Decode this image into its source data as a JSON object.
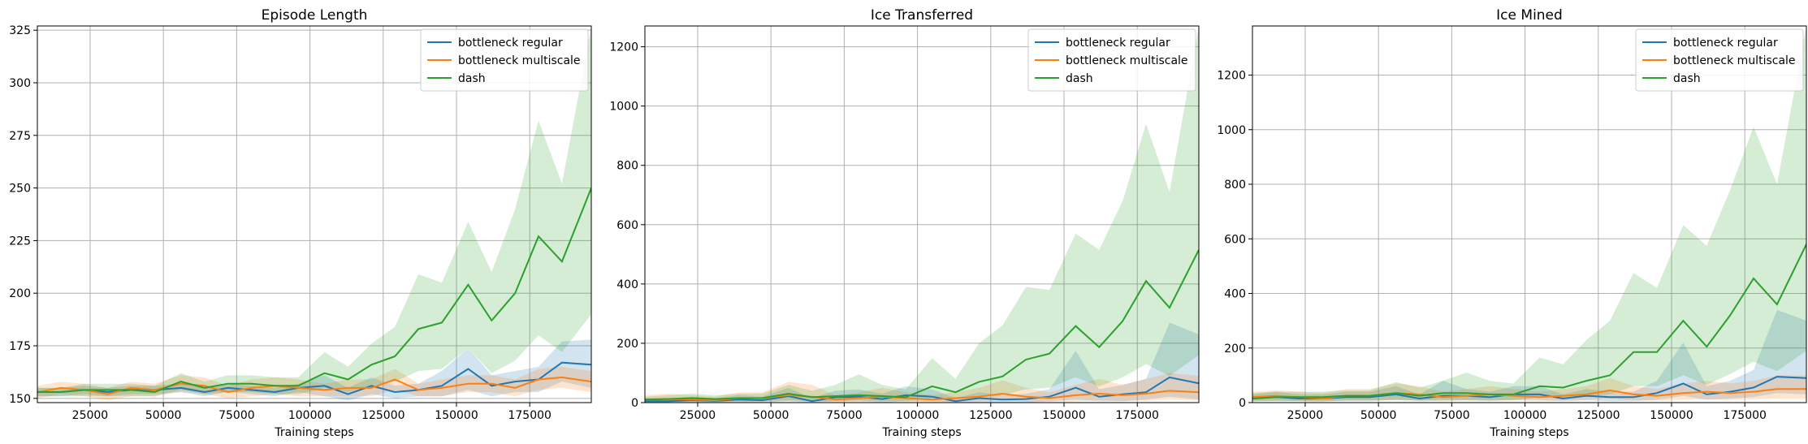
{
  "chart_data": [
    {
      "type": "line",
      "title": "Episode Length",
      "xlabel": "Training steps",
      "ylabel": "",
      "xlim": [
        7000,
        196000
      ],
      "ylim": [
        148,
        327
      ],
      "xticks": [
        25000,
        50000,
        75000,
        100000,
        125000,
        150000,
        175000
      ],
      "yticks": [
        150,
        175,
        200,
        225,
        250,
        275,
        300,
        325
      ],
      "grid": true,
      "legend": "top-right",
      "x": [
        7000,
        15000,
        23000,
        31000,
        39000,
        47000,
        56000,
        64000,
        72000,
        80000,
        88000,
        96000,
        105000,
        113000,
        121000,
        129000,
        137000,
        145000,
        154000,
        162000,
        170000,
        178000,
        186000,
        196000
      ],
      "series": [
        {
          "name": "bottleneck regular",
          "color": "#1f77b4",
          "values": [
            153,
            153,
            154,
            153,
            154,
            154,
            155,
            153,
            155,
            154,
            153,
            155,
            156,
            152,
            156,
            153,
            154,
            156,
            164,
            156,
            158,
            159,
            167,
            166
          ],
          "lower": [
            151,
            151,
            152,
            151,
            152,
            152,
            153,
            151,
            153,
            152,
            151,
            153,
            151,
            149,
            152,
            150,
            151,
            151,
            154,
            151,
            153,
            153,
            158,
            155
          ],
          "upper": [
            155,
            155,
            156,
            155,
            156,
            156,
            157,
            155,
            157,
            156,
            155,
            157,
            161,
            155,
            160,
            156,
            157,
            163,
            174,
            161,
            163,
            165,
            177,
            178
          ]
        },
        {
          "name": "bottleneck multiscale",
          "color": "#ff7f0e",
          "values": [
            153,
            155,
            154,
            152,
            155,
            154,
            157,
            156,
            153,
            155,
            156,
            155,
            154,
            155,
            155,
            159,
            154,
            155,
            157,
            157,
            155,
            159,
            160,
            158
          ],
          "lower": [
            150,
            152,
            151,
            149,
            151,
            151,
            153,
            152,
            150,
            151,
            152,
            151,
            151,
            151,
            151,
            154,
            151,
            151,
            153,
            153,
            151,
            154,
            155,
            153
          ],
          "upper": [
            156,
            158,
            157,
            155,
            158,
            157,
            161,
            160,
            156,
            159,
            160,
            159,
            157,
            159,
            159,
            164,
            157,
            159,
            161,
            161,
            159,
            164,
            165,
            163
          ]
        },
        {
          "name": "dash",
          "color": "#2ca02c",
          "values": [
            153,
            153,
            154,
            154,
            154,
            153,
            158,
            155,
            157,
            157,
            156,
            156,
            162,
            159,
            166,
            170,
            183,
            186,
            204,
            187,
            200,
            227,
            215,
            250
          ],
          "lower": [
            151,
            151,
            151,
            151,
            151,
            151,
            154,
            152,
            153,
            153,
            152,
            152,
            155,
            153,
            156,
            158,
            163,
            164,
            174,
            162,
            168,
            180,
            172,
            190
          ],
          "upper": [
            155,
            155,
            157,
            157,
            157,
            156,
            162,
            158,
            161,
            161,
            160,
            160,
            172,
            165,
            176,
            184,
            209,
            205,
            234,
            210,
            240,
            282,
            252,
            327
          ]
        }
      ]
    },
    {
      "type": "line",
      "title": "Ice Transferred",
      "xlabel": "Training steps",
      "ylabel": "",
      "xlim": [
        7000,
        196000
      ],
      "ylim": [
        0,
        1270
      ],
      "xticks": [
        25000,
        50000,
        75000,
        100000,
        125000,
        150000,
        175000
      ],
      "yticks": [
        0,
        200,
        400,
        600,
        800,
        1000,
        1200
      ],
      "grid": true,
      "legend": "top-right",
      "x": [
        7000,
        15000,
        23000,
        31000,
        39000,
        47000,
        56000,
        64000,
        72000,
        80000,
        88000,
        96000,
        105000,
        113000,
        121000,
        129000,
        137000,
        145000,
        154000,
        162000,
        170000,
        178000,
        186000,
        196000
      ],
      "series": [
        {
          "name": "bottleneck regular",
          "color": "#1f77b4",
          "values": [
            5,
            5,
            8,
            6,
            10,
            8,
            22,
            5,
            18,
            20,
            12,
            25,
            20,
            5,
            15,
            10,
            12,
            20,
            50,
            20,
            28,
            35,
            85,
            65
          ],
          "lower": [
            0,
            0,
            0,
            0,
            0,
            0,
            5,
            0,
            5,
            5,
            0,
            5,
            5,
            0,
            2,
            0,
            0,
            5,
            10,
            5,
            5,
            10,
            20,
            10
          ],
          "upper": [
            15,
            15,
            20,
            15,
            25,
            20,
            50,
            15,
            40,
            45,
            30,
            55,
            45,
            15,
            35,
            25,
            30,
            45,
            175,
            45,
            60,
            80,
            270,
            230
          ]
        },
        {
          "name": "bottleneck multiscale",
          "color": "#ff7f0e",
          "values": [
            10,
            12,
            10,
            8,
            15,
            15,
            25,
            20,
            10,
            15,
            20,
            15,
            10,
            15,
            20,
            30,
            20,
            15,
            25,
            30,
            25,
            30,
            40,
            35
          ],
          "lower": [
            2,
            3,
            2,
            2,
            3,
            3,
            5,
            5,
            2,
            3,
            5,
            3,
            2,
            3,
            5,
            8,
            5,
            3,
            5,
            8,
            5,
            8,
            10,
            8
          ],
          "upper": [
            25,
            30,
            25,
            20,
            35,
            35,
            70,
            60,
            25,
            35,
            50,
            35,
            25,
            35,
            50,
            75,
            50,
            35,
            60,
            80,
            60,
            80,
            100,
            90
          ]
        },
        {
          "name": "dash",
          "color": "#2ca02c",
          "values": [
            10,
            12,
            15,
            12,
            15,
            15,
            30,
            18,
            22,
            25,
            22,
            18,
            55,
            35,
            70,
            88,
            145,
            165,
            258,
            187,
            275,
            410,
            320,
            515
          ],
          "lower": [
            3,
            3,
            5,
            3,
            5,
            5,
            8,
            5,
            5,
            8,
            5,
            5,
            15,
            10,
            20,
            25,
            45,
            50,
            85,
            55,
            85,
            130,
            90,
            160
          ],
          "upper": [
            20,
            25,
            30,
            25,
            30,
            30,
            60,
            40,
            60,
            95,
            60,
            45,
            150,
            80,
            200,
            260,
            390,
            380,
            570,
            515,
            680,
            940,
            710,
            1270
          ]
        }
      ]
    },
    {
      "type": "line",
      "title": "Ice Mined",
      "xlabel": "Training steps",
      "ylabel": "",
      "xlim": [
        7000,
        196000
      ],
      "ylim": [
        0,
        1380
      ],
      "xticks": [
        25000,
        50000,
        75000,
        100000,
        125000,
        150000,
        175000
      ],
      "yticks": [
        0,
        200,
        400,
        600,
        800,
        1000,
        1200
      ],
      "grid": true,
      "legend": "top-right",
      "x": [
        7000,
        15000,
        23000,
        31000,
        39000,
        47000,
        56000,
        64000,
        72000,
        80000,
        88000,
        96000,
        105000,
        113000,
        121000,
        129000,
        137000,
        145000,
        154000,
        162000,
        170000,
        178000,
        186000,
        196000
      ],
      "series": [
        {
          "name": "bottleneck regular",
          "color": "#1f77b4",
          "values": [
            15,
            20,
            15,
            15,
            20,
            20,
            30,
            15,
            25,
            25,
            20,
            30,
            30,
            15,
            25,
            20,
            20,
            35,
            70,
            30,
            40,
            55,
            95,
            90
          ],
          "lower": [
            5,
            5,
            5,
            5,
            5,
            5,
            10,
            5,
            8,
            8,
            5,
            10,
            10,
            5,
            8,
            5,
            5,
            10,
            25,
            10,
            15,
            20,
            35,
            30
          ],
          "upper": [
            30,
            40,
            30,
            30,
            40,
            40,
            60,
            30,
            80,
            50,
            40,
            60,
            60,
            30,
            50,
            40,
            40,
            80,
            220,
            60,
            80,
            120,
            340,
            300
          ]
        },
        {
          "name": "bottleneck multiscale",
          "color": "#ff7f0e",
          "values": [
            20,
            25,
            20,
            15,
            25,
            25,
            35,
            30,
            20,
            25,
            30,
            25,
            20,
            25,
            30,
            45,
            30,
            25,
            35,
            40,
            35,
            40,
            50,
            50
          ],
          "lower": [
            5,
            8,
            5,
            3,
            8,
            8,
            10,
            8,
            5,
            8,
            10,
            8,
            5,
            8,
            10,
            15,
            8,
            8,
            10,
            12,
            10,
            12,
            15,
            15
          ],
          "upper": [
            40,
            45,
            40,
            35,
            50,
            50,
            70,
            60,
            40,
            50,
            60,
            50,
            40,
            50,
            60,
            90,
            60,
            50,
            70,
            80,
            70,
            80,
            100,
            100
          ]
        },
        {
          "name": "dash",
          "color": "#2ca02c",
          "values": [
            15,
            20,
            20,
            20,
            25,
            25,
            35,
            25,
            35,
            35,
            30,
            30,
            60,
            55,
            80,
            100,
            185,
            185,
            300,
            205,
            320,
            455,
            360,
            580
          ],
          "lower": [
            5,
            5,
            5,
            5,
            8,
            8,
            10,
            8,
            10,
            10,
            8,
            8,
            20,
            18,
            25,
            30,
            60,
            60,
            100,
            65,
            105,
            150,
            115,
            190
          ],
          "upper": [
            35,
            40,
            40,
            40,
            45,
            45,
            75,
            55,
            80,
            110,
            80,
            70,
            165,
            140,
            230,
            300,
            475,
            420,
            650,
            575,
            780,
            1010,
            800,
            1380
          ]
        }
      ]
    }
  ]
}
